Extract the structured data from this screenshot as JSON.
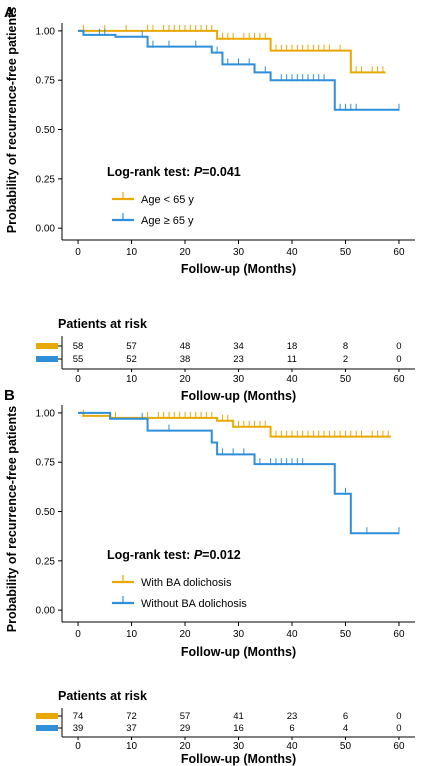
{
  "colors": {
    "group1": "#E8A905",
    "group2": "#2F8FD8"
  },
  "chart_data": [
    {
      "type": "line",
      "panel": "A",
      "xlabel": "Follow-up (Months)",
      "ylabel": "Probability of recurrence-free patients",
      "xlim": [
        0,
        60
      ],
      "ylim": [
        0,
        1.0
      ],
      "x_ticks": [
        0,
        10,
        20,
        30,
        40,
        50,
        60
      ],
      "y_ticks": [
        0.0,
        0.25,
        0.5,
        0.75,
        1.0
      ],
      "y_tick_labels": [
        "0.00",
        "0.25",
        "0.50",
        "0.75",
        "1.00"
      ],
      "annotation": {
        "prefix": "Log-rank test: ",
        "p_label": "P",
        "p_value": "=0.041"
      },
      "series": [
        {
          "name": "Age < 65 y",
          "color": "#E8A905",
          "steps": [
            [
              0,
              1.0
            ],
            [
              26,
              0.96
            ],
            [
              36,
              0.9
            ],
            [
              51,
              0.79
            ],
            [
              57.5,
              0.79
            ]
          ],
          "censors": [
            1,
            5,
            9,
            13,
            14,
            16,
            17,
            18,
            19,
            20,
            21,
            22,
            23,
            24,
            25,
            27,
            28,
            29,
            31,
            32,
            33,
            34,
            35,
            37,
            38,
            39,
            40,
            41,
            42,
            43,
            44,
            45,
            46,
            47,
            49,
            52,
            53,
            55,
            56,
            57
          ]
        },
        {
          "name": "Age ≥ 65 y",
          "color": "#2F8FD8",
          "steps": [
            [
              0,
              1.0
            ],
            [
              1,
              0.98
            ],
            [
              7,
              0.97
            ],
            [
              13,
              0.92
            ],
            [
              25,
              0.89
            ],
            [
              27,
              0.83
            ],
            [
              33,
              0.79
            ],
            [
              36,
              0.75
            ],
            [
              48,
              0.6
            ],
            [
              60,
              0.6
            ]
          ],
          "censors": [
            4,
            5,
            12,
            14,
            17,
            22,
            26,
            28,
            30,
            32,
            35,
            38,
            39,
            40,
            41,
            42,
            43,
            44,
            45,
            46,
            49,
            50,
            51,
            52,
            60
          ]
        }
      ],
      "risk_table": {
        "title": "Patients at risk",
        "times": [
          0,
          10,
          20,
          30,
          40,
          50,
          60
        ],
        "rows": [
          {
            "series": "Age < 65 y",
            "values": [
              "58",
              "57",
              "48",
              "34",
              "18",
              "8",
              "0"
            ]
          },
          {
            "series": "Age ≥ 65 y",
            "values": [
              "55",
              "52",
              "38",
              "23",
              "11",
              "2",
              "0"
            ]
          }
        ],
        "xlabel": "Follow-up (Months)"
      }
    },
    {
      "type": "line",
      "panel": "B",
      "xlabel": "Follow-up (Months)",
      "ylabel": "Probability of recurrence-free patients",
      "xlim": [
        0,
        60
      ],
      "ylim": [
        0,
        1.0
      ],
      "x_ticks": [
        0,
        10,
        20,
        30,
        40,
        50,
        60
      ],
      "y_ticks": [
        0.0,
        0.25,
        0.5,
        0.75,
        1.0
      ],
      "y_tick_labels": [
        "0.00",
        "0.25",
        "0.50",
        "0.75",
        "1.00"
      ],
      "annotation": {
        "prefix": "Log-rank test: ",
        "p_label": "P",
        "p_value": "=0.012"
      },
      "series": [
        {
          "name": "With BA dolichosis",
          "color": "#E8A905",
          "steps": [
            [
              0,
              1.0
            ],
            [
              1,
              0.985
            ],
            [
              6,
              0.975
            ],
            [
              26,
              0.96
            ],
            [
              29,
              0.93
            ],
            [
              36,
              0.88
            ],
            [
              58.5,
              0.88
            ]
          ],
          "censors": [
            1,
            7,
            13,
            15,
            16,
            17,
            18,
            19,
            20,
            21,
            22,
            23,
            24,
            25,
            27,
            28,
            30,
            31,
            32,
            33,
            34,
            35,
            37,
            38,
            39,
            40,
            41,
            42,
            43,
            44,
            45,
            46,
            47,
            48,
            49,
            50,
            51,
            52,
            53,
            55,
            56,
            57,
            58
          ]
        },
        {
          "name": "Without BA dolichosis",
          "color": "#2F8FD8",
          "steps": [
            [
              0,
              1.0
            ],
            [
              6,
              0.97
            ],
            [
              13,
              0.91
            ],
            [
              25,
              0.85
            ],
            [
              26,
              0.79
            ],
            [
              33,
              0.74
            ],
            [
              48,
              0.59
            ],
            [
              51,
              0.39
            ],
            [
              60,
              0.39
            ]
          ],
          "censors": [
            6,
            12,
            17,
            27,
            29,
            31,
            34,
            36,
            37,
            38,
            39,
            40,
            41,
            42,
            50,
            54,
            60
          ]
        }
      ],
      "risk_table": {
        "title": "Patients at risk",
        "times": [
          0,
          10,
          20,
          30,
          40,
          50,
          60
        ],
        "rows": [
          {
            "series": "With BA dolichosis",
            "values": [
              "74",
              "72",
              "57",
              "41",
              "23",
              "6",
              "0"
            ]
          },
          {
            "series": "Without BA dolichosis",
            "values": [
              "39",
              "37",
              "29",
              "16",
              "6",
              "4",
              "0"
            ]
          }
        ],
        "xlabel": "Follow-up (Months)"
      }
    }
  ]
}
